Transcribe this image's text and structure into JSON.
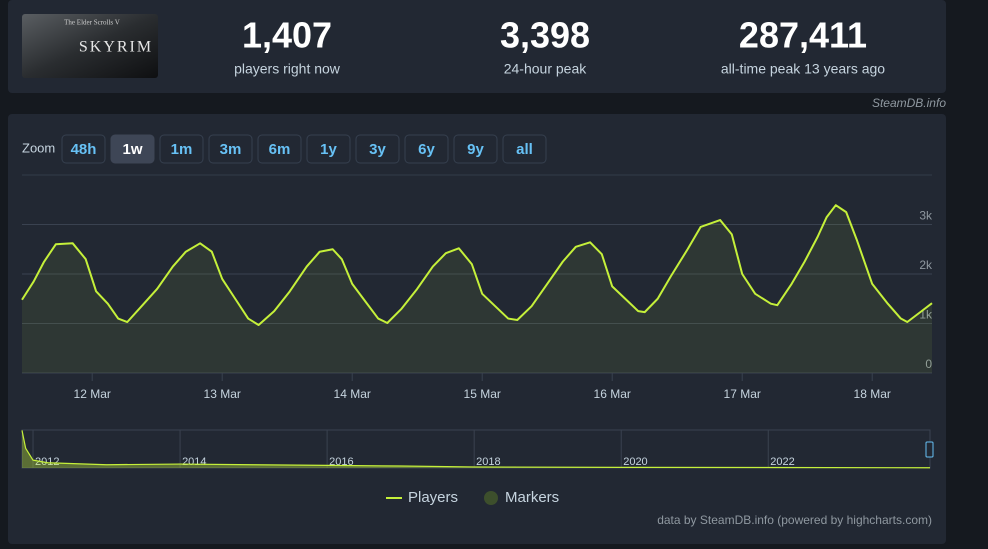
{
  "header": {
    "game_logo": {
      "subtitle": "The Elder Scrolls V",
      "title": "SKYRIM"
    },
    "stats": [
      {
        "value": "1,407",
        "label": "players right now"
      },
      {
        "value": "3,398",
        "label": "24-hour peak"
      },
      {
        "value": "287,411",
        "label": "all-time peak 13 years ago"
      }
    ],
    "source": "SteamDB.info"
  },
  "zoom": {
    "label": "Zoom",
    "buttons": [
      "48h",
      "1w",
      "1m",
      "3m",
      "6m",
      "1y",
      "3y",
      "6y",
      "9y",
      "all"
    ],
    "active_index": 1
  },
  "chart_data": [
    {
      "type": "line",
      "x": [
        11.46,
        11.55,
        11.63,
        11.72,
        11.85,
        11.95,
        12.03,
        12.12,
        12.2,
        12.27,
        12.38,
        12.5,
        12.62,
        12.72,
        12.83,
        12.92,
        13.0,
        13.1,
        13.2,
        13.28,
        13.4,
        13.52,
        13.65,
        13.75,
        13.85,
        13.92,
        14.0,
        14.1,
        14.2,
        14.27,
        14.38,
        14.5,
        14.62,
        14.72,
        14.82,
        14.92,
        15.0,
        15.1,
        15.2,
        15.27,
        15.38,
        15.5,
        15.62,
        15.72,
        15.83,
        15.92,
        16.0,
        16.1,
        16.2,
        16.25,
        16.35,
        16.45,
        16.58,
        16.68,
        16.83,
        16.92,
        17.0,
        17.1,
        17.22,
        17.27,
        17.38,
        17.48,
        17.58,
        17.65,
        17.72,
        17.8,
        17.88,
        18.0,
        18.12,
        18.22,
        18.27,
        18.38,
        18.46
      ],
      "series": [
        {
          "name": "Players",
          "color": "#c5f03a",
          "values": [
            1480,
            1850,
            2250,
            2600,
            2620,
            2300,
            1650,
            1400,
            1100,
            1030,
            1350,
            1700,
            2150,
            2450,
            2620,
            2450,
            1900,
            1500,
            1100,
            970,
            1250,
            1650,
            2150,
            2450,
            2500,
            2300,
            1800,
            1450,
            1100,
            1010,
            1300,
            1700,
            2150,
            2420,
            2520,
            2200,
            1600,
            1350,
            1100,
            1070,
            1350,
            1800,
            2250,
            2550,
            2640,
            2400,
            1750,
            1500,
            1250,
            1230,
            1500,
            1950,
            2500,
            2950,
            3090,
            2800,
            2000,
            1600,
            1400,
            1370,
            1800,
            2250,
            2750,
            3150,
            3390,
            3250,
            2700,
            1800,
            1400,
            1100,
            1030,
            1250,
            1410
          ]
        }
      ],
      "markers": {
        "name": "Markers",
        "color": "#3d4f2c"
      },
      "xlim": [
        11.46,
        18.46
      ],
      "xticks": [
        {
          "value": 12,
          "label": "12 Mar"
        },
        {
          "value": 13,
          "label": "13 Mar"
        },
        {
          "value": 14,
          "label": "14 Mar"
        },
        {
          "value": 15,
          "label": "15 Mar"
        },
        {
          "value": 16,
          "label": "16 Mar"
        },
        {
          "value": 17,
          "label": "17 Mar"
        },
        {
          "value": 18,
          "label": "18 Mar"
        }
      ],
      "ylim": [
        0,
        4000
      ],
      "yticks": [
        0,
        {
          "value": 1000,
          "label": "1k"
        },
        {
          "value": 2000,
          "label": "2k"
        },
        {
          "value": 3000,
          "label": "3k"
        }
      ],
      "grid": true
    },
    {
      "type": "area",
      "x": [
        2011.85,
        2011.9,
        2012.0,
        2012.2,
        2013.0,
        2014.0,
        2015.0,
        2016.0,
        2017.0,
        2018.0,
        2020.0,
        2022.0,
        2024.2
      ],
      "series": [
        {
          "name": null,
          "color": "#c5f03a",
          "values": [
            287000,
            150000,
            60000,
            40000,
            25000,
            30000,
            25000,
            20000,
            15000,
            8000,
            5000,
            4000,
            2000
          ]
        }
      ],
      "xlim": [
        2011.85,
        2024.2
      ],
      "xticks": [
        2012,
        2014,
        2016,
        2018,
        2020,
        2022
      ],
      "ylim": [
        0,
        290000
      ]
    }
  ],
  "credits": "data by SteamDB.info (powered by highcharts.com)"
}
